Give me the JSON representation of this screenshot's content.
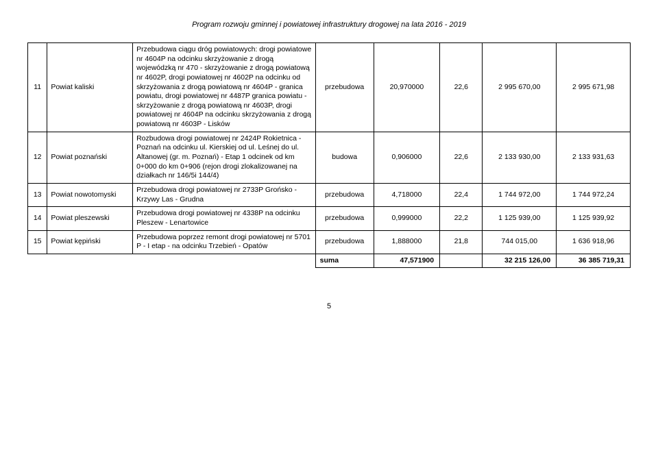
{
  "header": "Program rozwoju gminnej i powiatowej infrastruktury drogowej na lata 2016 - 2019",
  "rows": [
    {
      "num": "11",
      "powiat": "Powiat kaliski",
      "desc": "Przebudowa ciągu dróg powiatowych: drogi powiatowe nr 4604P na odcinku skrzyżowanie z drogą wojewódzką nr 470 - skrzyżowanie z drogą powiatową nr 4602P, drogi powiatowej nr 4602P na odcinku od skrzyżowania z drogą powiatową nr 4604P - granica powiatu, drogi powiatowej nr 4487P granica powiatu - skrzyżowanie z drogą powiatową nr 4603P, drogi powiatowej nr 4604P na odcinku skrzyżowania z drogą powiatową nr 4603P - Lisków",
      "type": "przebudowa",
      "v1": "20,970000",
      "v2": "22,6",
      "v3": "2 995 670,00",
      "v4": "2 995 671,98"
    },
    {
      "num": "12",
      "powiat": "Powiat poznański",
      "desc": "Rozbudowa drogi powiatowej nr 2424P Rokietnica - Poznań na odcinku ul. Kierskiej od ul. Leśnej do ul. Altanowej (gr. m. Poznań) - Etap 1 odcinek od km 0+000 do km 0+906 (rejon drogi zlokalizowanej na działkach nr 146/5i 144/4)",
      "type": "budowa",
      "v1": "0,906000",
      "v2": "22,6",
      "v3": "2 133 930,00",
      "v4": "2 133 931,63"
    },
    {
      "num": "13",
      "powiat": "Powiat nowotomyski",
      "desc": "Przebudowa drogi powiatowej nr 2733P Grońsko - Krzywy Las - Grudna",
      "type": "przebudowa",
      "v1": "4,718000",
      "v2": "22,4",
      "v3": "1 744 972,00",
      "v4": "1 744 972,24"
    },
    {
      "num": "14",
      "powiat": "Powiat pleszewski",
      "desc": "Przebudowa drogi powiatowej nr 4338P na odcinku Pleszew - Lenartowice",
      "type": "przebudowa",
      "v1": "0,999000",
      "v2": "22,2",
      "v3": "1 125 939,00",
      "v4": "1 125 939,92"
    },
    {
      "num": "15",
      "powiat": "Powiat kępiński",
      "desc": "Przebudowa poprzez remont drogi powiatowej nr 5701 P - I etap - na odcinku Trzebień - Opatów",
      "type": "przebudowa",
      "v1": "1,888000",
      "v2": "21,8",
      "v3": "744 015,00",
      "v4": "1 636 918,96"
    }
  ],
  "sum": {
    "label": "suma",
    "v1": "47,571900",
    "v3": "32 215 126,00",
    "v4": "36 385 719,31"
  },
  "pageNumber": "5"
}
